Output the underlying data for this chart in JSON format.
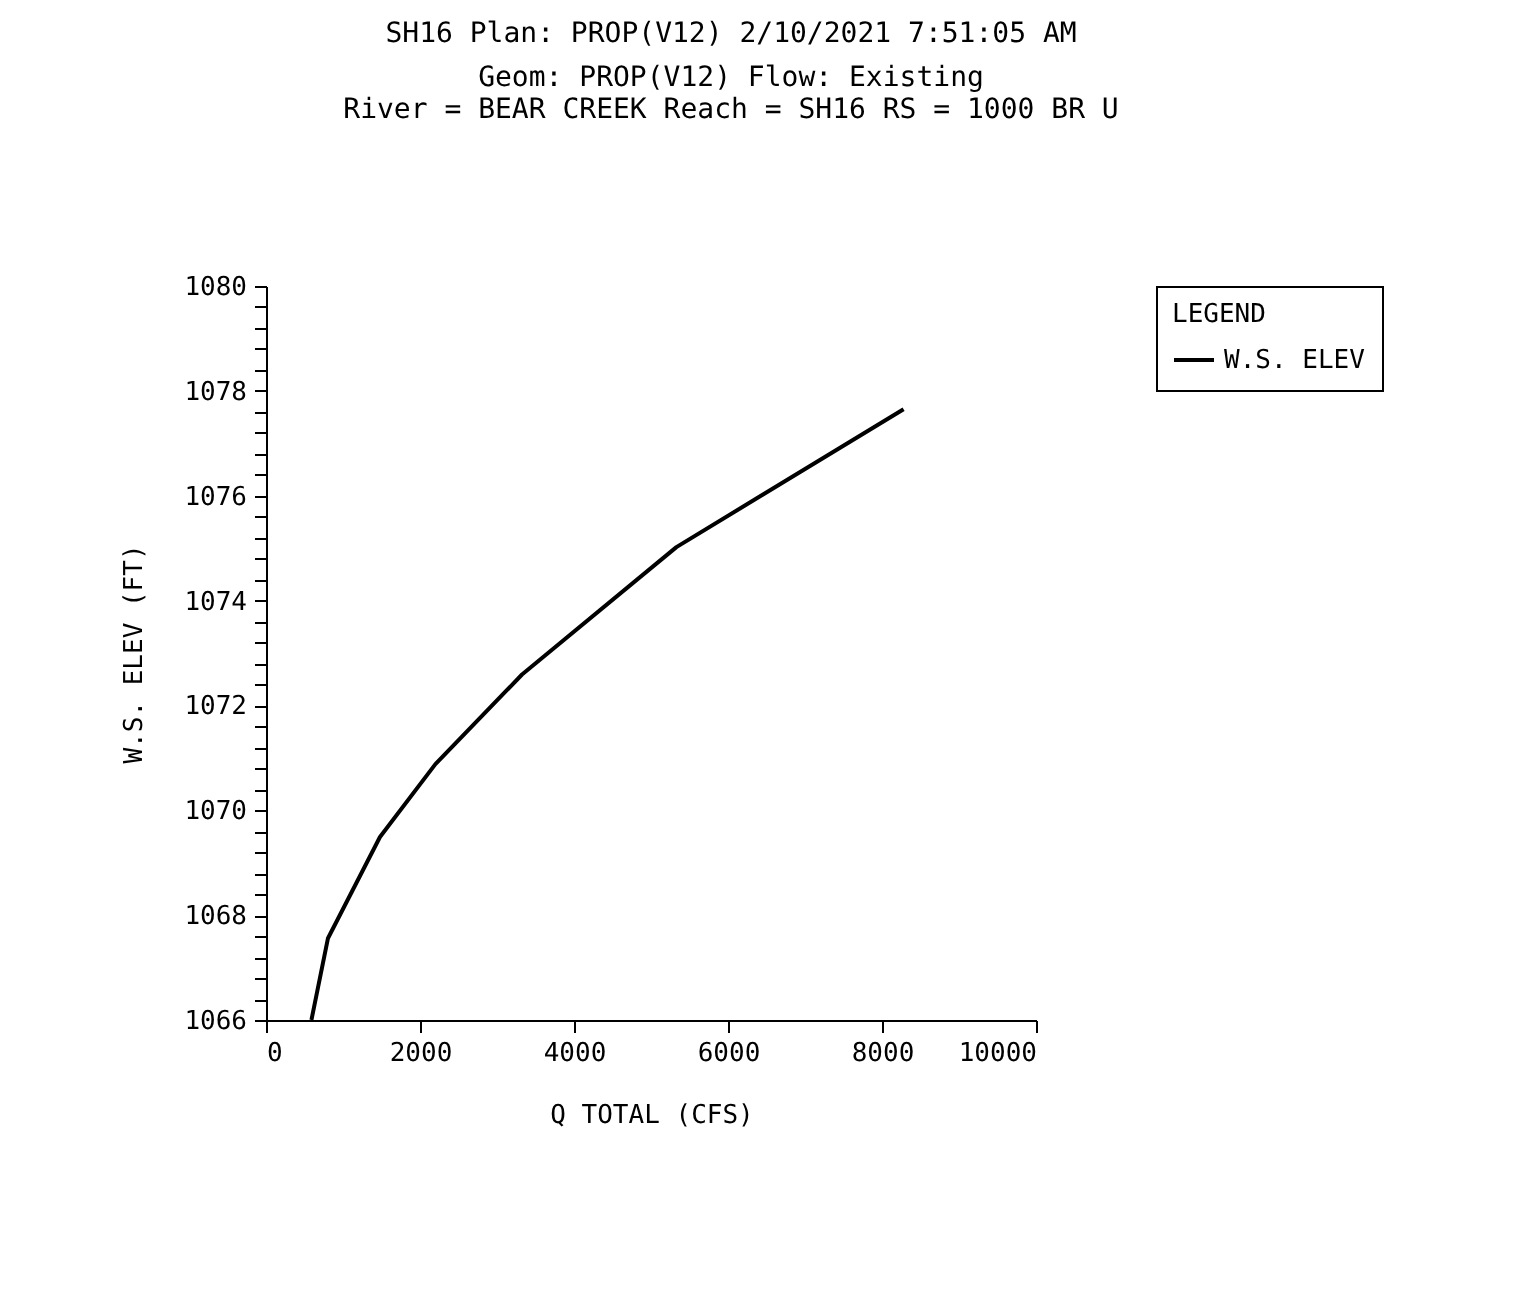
{
  "chart_data": {
    "type": "line",
    "title": "SH16     Plan: PROP(V12)     2/10/2021   7:51:05 AM",
    "subtitle": "Geom: PROP(V12)     Flow: Existing",
    "annotations": [
      "River = BEAR CREEK     Reach = SH16       RS = 1000 BR U"
    ],
    "xlabel": "Q TOTAL   (CFS)",
    "ylabel": "W.S. ELEV   (FT)",
    "legend_title": "LEGEND",
    "legend": "right",
    "x": [
      590,
      805,
      1480,
      2200,
      3325,
      5330,
      8280
    ],
    "series": [
      {
        "name": "W.S. ELEV",
        "color": "#000000",
        "values": [
          1066,
          1067.56,
          1069.49,
          1070.88,
          1072.59,
          1075.02,
          1077.65
        ]
      }
    ],
    "xlim": [
      0,
      10000
    ],
    "xticks": [
      0,
      2000,
      4000,
      6000,
      8000,
      10000
    ],
    "ylim": [
      1066,
      1080
    ],
    "yticks": [
      1066,
      {
        "value": 1066.4,
        "label": null
      },
      {
        "value": 1066.8,
        "label": null
      },
      {
        "value": 1067.2,
        "label": null
      },
      {
        "value": 1067.6,
        "label": null
      },
      1068,
      {
        "value": 1068.4,
        "label": null
      },
      {
        "value": 1068.8,
        "label": null
      },
      {
        "value": 1069.2,
        "label": null
      },
      {
        "value": 1069.6,
        "label": null
      },
      1070,
      {
        "value": 1070.4,
        "label": null
      },
      {
        "value": 1070.8,
        "label": null
      },
      {
        "value": 1071.2,
        "label": null
      },
      {
        "value": 1071.6,
        "label": null
      },
      1072,
      {
        "value": 1072.4,
        "label": null
      },
      {
        "value": 1072.8,
        "label": null
      },
      {
        "value": 1073.2,
        "label": null
      },
      {
        "value": 1073.6,
        "label": null
      },
      1074,
      {
        "value": 1074.4,
        "label": null
      },
      {
        "value": 1074.8,
        "label": null
      },
      {
        "value": 1075.2,
        "label": null
      },
      {
        "value": 1075.6,
        "label": null
      },
      1076,
      {
        "value": 1076.4,
        "label": null
      },
      {
        "value": 1076.8,
        "label": null
      },
      {
        "value": 1077.2,
        "label": null
      },
      {
        "value": 1077.6,
        "label": null
      },
      1078,
      {
        "value": 1078.4,
        "label": null
      },
      {
        "value": 1078.8,
        "label": null
      },
      {
        "value": 1079.2,
        "label": null
      },
      {
        "value": 1079.6,
        "label": null
      },
      1080
    ],
    "grid": false,
    "line_style": "solid",
    "marker": "none"
  }
}
